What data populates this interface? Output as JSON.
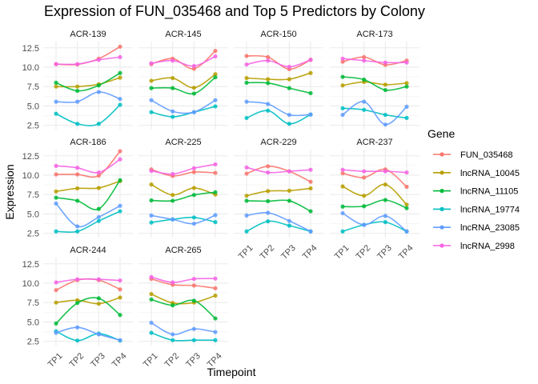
{
  "chart_data": {
    "type": "line",
    "title": "Expression of FUN_035468 and Top 5 Predictors by Colony",
    "xlabel": "Timepoint",
    "ylabel": "Expression",
    "x": [
      "TP1",
      "TP2",
      "TP3",
      "TP4"
    ],
    "ylim": [
      1.95,
      13.3
    ],
    "yticks": [
      2.5,
      5.0,
      7.5,
      10.0,
      12.5
    ],
    "ytick_labels": [
      "2.5",
      "5.0",
      "7.5",
      "10.0",
      "12.5"
    ],
    "grid": true,
    "legend": {
      "title": "Gene",
      "placement": "right"
    },
    "series_names": [
      "FUN_035468",
      "lncRNA_10045",
      "lncRNA_11105",
      "lncRNA_19774",
      "lncRNA_23085",
      "lncRNA_2998"
    ],
    "colors": [
      "#F8766D",
      "#B79F00",
      "#00BA38",
      "#00BFC4",
      "#619CFF",
      "#F564E3"
    ],
    "facets": [
      {
        "label": "ACR-139",
        "series": [
          [
            10.4,
            10.35,
            11.1,
            12.65
          ],
          [
            7.5,
            7.5,
            7.8,
            8.65
          ],
          [
            8.0,
            6.95,
            7.65,
            9.25
          ],
          [
            4.0,
            2.7,
            2.7,
            5.15
          ],
          [
            5.55,
            5.55,
            6.8,
            5.9
          ],
          [
            10.4,
            10.4,
            10.95,
            11.3
          ]
        ]
      },
      {
        "label": "ACR-145",
        "series": [
          [
            10.4,
            11.1,
            9.8,
            12.1
          ],
          [
            8.25,
            8.6,
            7.35,
            9.1
          ],
          [
            7.3,
            7.3,
            6.6,
            8.7
          ],
          [
            4.2,
            3.6,
            4.2,
            4.95
          ],
          [
            5.75,
            4.3,
            4.2,
            5.75
          ],
          [
            10.5,
            10.85,
            10.15,
            11.4
          ]
        ]
      },
      {
        "label": "ACR-150",
        "series": [
          [
            11.45,
            11.3,
            9.75,
            10.95
          ],
          [
            8.6,
            8.45,
            8.45,
            9.25
          ],
          [
            8.0,
            7.95,
            7.3,
            6.65
          ],
          [
            3.45,
            4.4,
            2.7,
            3.9
          ],
          [
            5.55,
            5.25,
            3.85,
            3.9
          ],
          [
            10.35,
            10.85,
            10.05,
            10.95
          ]
        ]
      },
      {
        "label": "ACR-173",
        "series": [
          [
            10.7,
            11.3,
            10.3,
            10.85
          ],
          [
            7.65,
            8.1,
            7.75,
            7.95
          ],
          [
            8.75,
            8.4,
            7.05,
            7.5
          ],
          [
            4.7,
            4.5,
            3.85,
            3.45
          ],
          [
            3.85,
            5.55,
            2.6,
            4.9
          ],
          [
            11.1,
            10.85,
            10.6,
            10.6
          ]
        ]
      },
      {
        "label": "ACR-186",
        "series": [
          [
            10.1,
            10.1,
            9.95,
            13.1
          ],
          [
            7.9,
            8.3,
            8.35,
            9.25
          ],
          [
            7.1,
            6.7,
            5.65,
            9.35
          ],
          [
            2.75,
            2.75,
            4.1,
            5.35
          ],
          [
            6.35,
            3.4,
            4.6,
            6.05
          ],
          [
            11.2,
            10.95,
            10.35,
            12.05
          ]
        ]
      },
      {
        "label": "ACR-225",
        "series": [
          [
            10.75,
            9.9,
            10.4,
            10.3
          ],
          [
            8.8,
            7.45,
            8.35,
            7.5
          ],
          [
            6.75,
            6.7,
            7.45,
            7.8
          ],
          [
            3.9,
            4.3,
            4.55,
            3.95
          ],
          [
            4.8,
            4.3,
            3.75,
            4.85
          ],
          [
            10.55,
            10.15,
            10.9,
            11.4
          ]
        ]
      },
      {
        "label": "ACR-229",
        "series": [
          [
            10.2,
            11.15,
            10.5,
            9.15
          ],
          [
            7.35,
            7.95,
            8.0,
            8.3
          ],
          [
            6.7,
            6.65,
            6.7,
            5.35
          ],
          [
            2.75,
            4.05,
            3.5,
            2.75
          ],
          [
            4.8,
            5.15,
            4.1,
            2.75
          ],
          [
            11.0,
            10.35,
            10.5,
            10.7
          ]
        ]
      },
      {
        "label": "ACR-237",
        "series": [
          [
            10.25,
            9.7,
            10.75,
            8.5
          ],
          [
            8.55,
            7.35,
            8.8,
            6.2
          ],
          [
            5.95,
            6.0,
            6.8,
            5.75
          ],
          [
            2.75,
            3.6,
            3.95,
            2.75
          ],
          [
            5.1,
            3.6,
            4.75,
            2.75
          ],
          [
            10.7,
            10.5,
            10.5,
            10.35
          ]
        ]
      },
      {
        "label": "ACR-244",
        "series": [
          [
            9.1,
            10.4,
            10.4,
            9.2
          ],
          [
            7.5,
            7.8,
            7.35,
            8.15
          ],
          [
            4.8,
            7.45,
            8.05,
            5.9
          ],
          [
            3.8,
            2.6,
            3.5,
            2.6
          ],
          [
            3.6,
            4.3,
            3.4,
            2.65
          ],
          [
            10.1,
            10.5,
            10.5,
            10.35
          ]
        ]
      },
      {
        "label": "ACR-265",
        "series": [
          [
            10.55,
            9.8,
            9.7,
            9.35
          ],
          [
            8.6,
            7.45,
            7.5,
            8.4
          ],
          [
            7.9,
            7.15,
            7.75,
            5.45
          ],
          [
            3.6,
            2.65,
            2.65,
            2.65
          ],
          [
            4.9,
            3.4,
            4.1,
            3.7
          ],
          [
            10.8,
            10.1,
            10.55,
            10.6
          ]
        ]
      }
    ]
  }
}
